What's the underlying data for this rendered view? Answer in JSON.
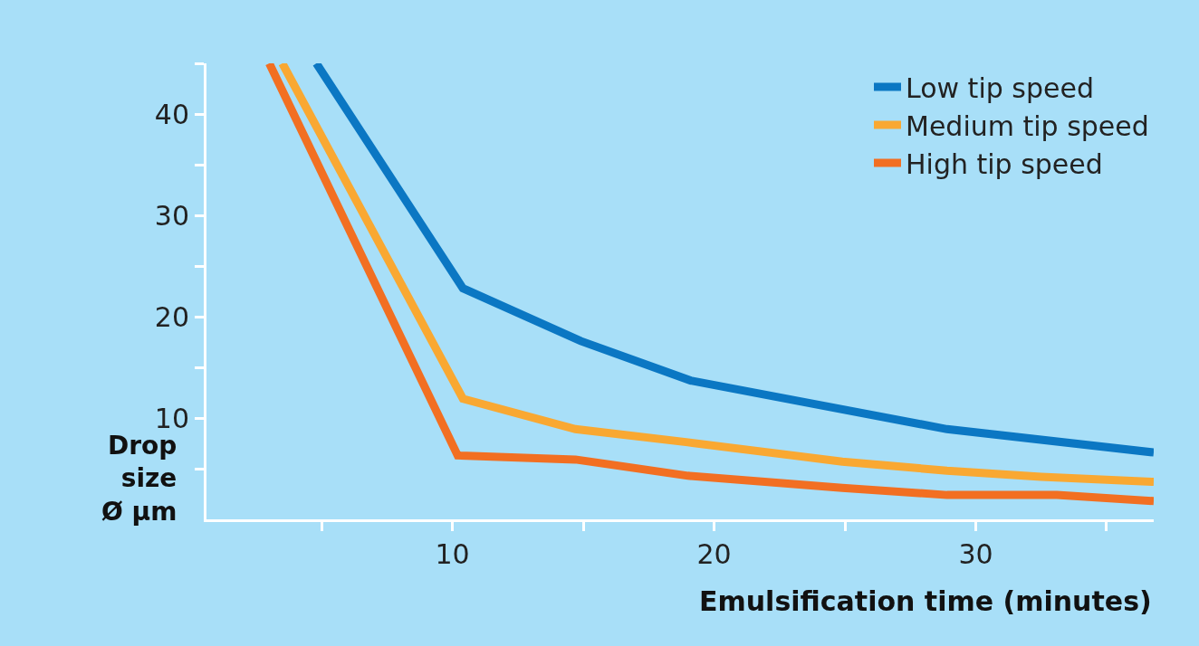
{
  "chart_data": {
    "type": "line",
    "xlabel": "Emulsification time (minutes)",
    "ylabel": "Drop\nsize\nØ µm",
    "xlim": [
      0.6,
      36.8
    ],
    "ylim": [
      0,
      45
    ],
    "xticks": [
      {
        "value": 5,
        "label": null
      },
      10,
      {
        "value": 15,
        "label": null
      },
      20,
      {
        "value": 25,
        "label": null
      },
      30,
      {
        "value": 35,
        "label": null
      }
    ],
    "yticks": [
      {
        "value": 5,
        "label": null
      },
      10,
      {
        "value": 15,
        "label": null
      },
      20,
      {
        "value": 25,
        "label": null
      },
      30,
      {
        "value": 35,
        "label": null
      },
      40,
      {
        "value": 45,
        "label": null
      }
    ],
    "grid": false,
    "legend": "top right",
    "marker": "none",
    "line_style": "solid",
    "series": [
      {
        "name": "Low tip speed",
        "color": "#0b77c3",
        "x": [
          4.8,
          10.4,
          14.9,
          19.1,
          28.9,
          36.8
        ],
        "values": [
          45,
          22.8,
          17.6,
          13.7,
          8.9,
          6.6
        ]
      },
      {
        "name": "Medium tip speed",
        "color": "#f9a832",
        "x": [
          3.5,
          10.4,
          14.7,
          19.0,
          24.9,
          28.9,
          32.5,
          36.8
        ],
        "values": [
          45,
          11.9,
          8.9,
          7.6,
          5.7,
          4.8,
          4.2,
          3.7
        ]
      },
      {
        "name": "High tip speed",
        "color": "#f26f22",
        "x": [
          3.0,
          10.2,
          14.7,
          19.0,
          24.9,
          28.9,
          33.1,
          36.8
        ],
        "values": [
          45,
          6.3,
          5.9,
          4.3,
          3.1,
          2.4,
          2.4,
          1.8
        ]
      }
    ]
  }
}
